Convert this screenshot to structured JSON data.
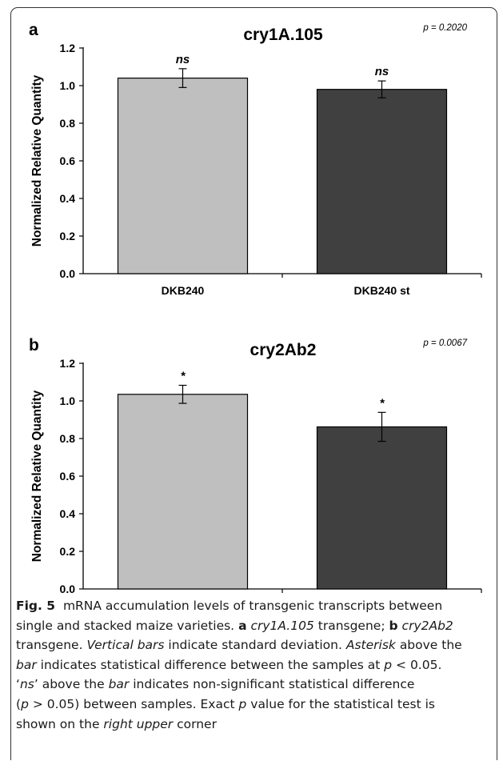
{
  "chart_data": [
    {
      "type": "bar",
      "panel_label": "a",
      "title": "cry1A.105",
      "p_value_text": "p = 0.2020",
      "ylabel": "Normalized Relative Quantity",
      "categories": [
        "DKB240",
        "DKB240 st"
      ],
      "values": [
        1.04,
        0.98
      ],
      "errors": [
        0.05,
        0.045
      ],
      "annotations": [
        "ns",
        "ns"
      ],
      "bar_colors": [
        "#bfbfbf",
        "#404040"
      ],
      "ylim": [
        0,
        1.2
      ],
      "yticks": [
        "0.0",
        "0.2",
        "0.4",
        "0.6",
        "0.8",
        "1.0",
        "1.2"
      ],
      "grid": false
    },
    {
      "type": "bar",
      "panel_label": "b",
      "title": "cry2Ab2",
      "p_value_text": "p = 0.0067",
      "ylabel": "Normalized Relative Quantity",
      "categories": [
        "DKB240",
        "DKB240 st"
      ],
      "values": [
        1.035,
        0.862
      ],
      "errors": [
        0.048,
        0.077
      ],
      "annotations": [
        "*",
        "*"
      ],
      "bar_colors": [
        "#bfbfbf",
        "#404040"
      ],
      "ylim": [
        0,
        1.2
      ],
      "yticks": [
        "0.0",
        "0.2",
        "0.4",
        "0.6",
        "0.8",
        "1.0",
        "1.2"
      ],
      "grid": false
    }
  ],
  "caption": {
    "fig_label": "Fig. 5",
    "line1": "mRNA accumulation levels of transgenic transcripts between",
    "line2": "single and stacked maize varieties.",
    "a_label": "a",
    "a_gene": "cry1A.105",
    "a_tail": "transgene;",
    "b_label": "b",
    "b_gene": "cry2Ab2",
    "line3": "transgene.",
    "vertical_bars": "Vertical bars",
    "line3_tail": "indicate standard deviation.",
    "asterisk": "Asterisk",
    "line3_end": "above the",
    "bar1": "bar",
    "line4_tail": "indicates statistical difference between the samples at",
    "p1": "p",
    "lt": "< 0.05.",
    "ns_open": "‘",
    "ns": "ns",
    "ns_close": "’",
    "line5_mid": "above the",
    "bar2": "bar",
    "line5_tail": "indicates non-significant statistical difference",
    "paren_open": "(",
    "p2": "p",
    "gt": "> 0.05) between samples. Exact",
    "p3": "p",
    "line6_tail": "value for the statistical test is",
    "line7": "shown on the",
    "right_upper": "right upper",
    "corner": "corner"
  }
}
